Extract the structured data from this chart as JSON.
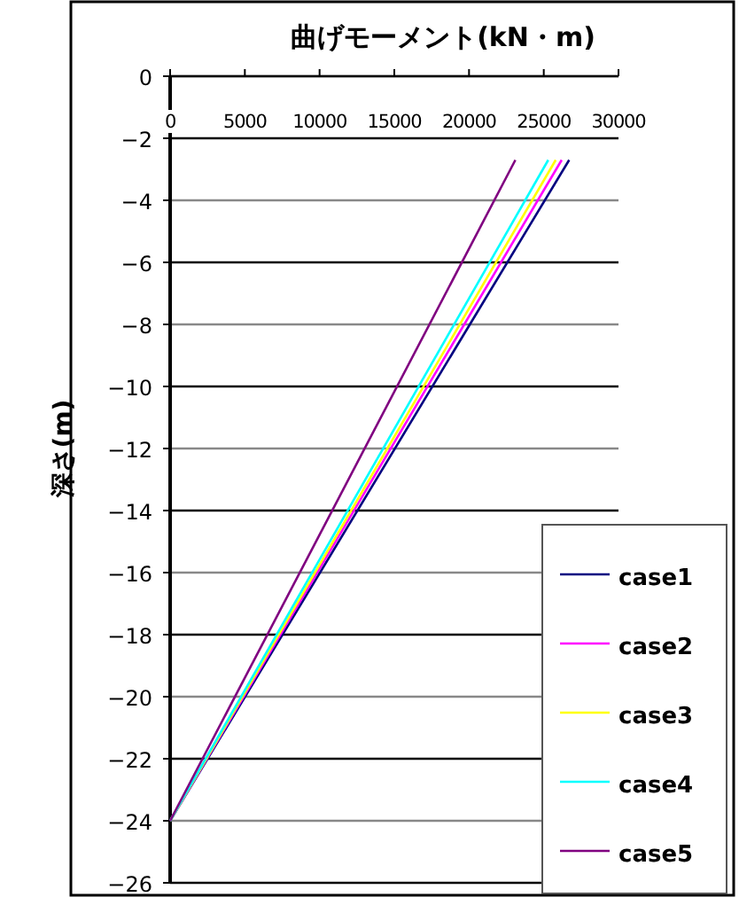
{
  "chart_data": {
    "type": "line",
    "title": "曲げモーメント(kN・m)",
    "ylabel": "深さ(m)",
    "xlim": [
      0,
      30000
    ],
    "xticks": [
      0,
      5000,
      10000,
      15000,
      20000,
      25000,
      30000
    ],
    "ylim": [
      -26,
      0
    ],
    "yticks": [
      0,
      -2,
      -4,
      -6,
      -8,
      -10,
      -12,
      -14,
      -16,
      -18,
      -20,
      -22,
      -24,
      -26
    ],
    "grid": "y",
    "legend": "bottom right",
    "marker": "none",
    "line_style": "solid",
    "series": [
      {
        "name": "case1",
        "color": "#000080",
        "x": [
          0,
          26700
        ],
        "values": [
          -24,
          -2.7
        ]
      },
      {
        "name": "case2",
        "color": "#ff00ff",
        "x": [
          0,
          26200
        ],
        "values": [
          -24,
          -2.7
        ]
      },
      {
        "name": "case3",
        "color": "#ffff00",
        "x": [
          0,
          25800
        ],
        "values": [
          -24,
          -2.7
        ]
      },
      {
        "name": "case4",
        "color": "#00ffff",
        "x": [
          0,
          25300
        ],
        "values": [
          -24,
          -2.7
        ]
      },
      {
        "name": "case5",
        "color": "#800080",
        "x": [
          0,
          23100
        ],
        "values": [
          -24,
          -2.7
        ]
      }
    ]
  }
}
